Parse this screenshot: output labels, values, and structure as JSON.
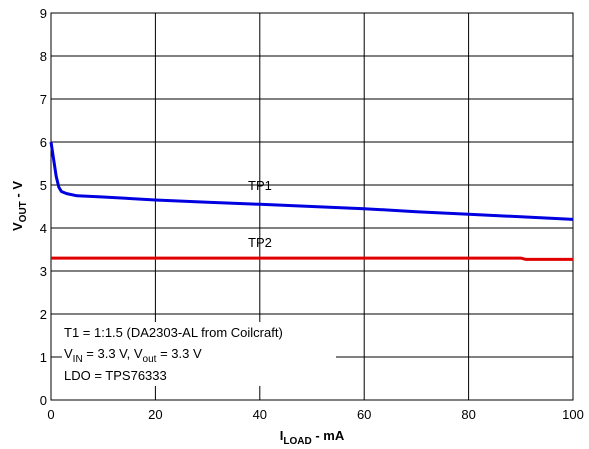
{
  "chart_data": {
    "type": "line",
    "xlabel": {
      "main": "I",
      "sub": "LOAD",
      "suffix": " - mA"
    },
    "ylabel": {
      "main": "V",
      "sub": "OUT",
      "suffix": " - V"
    },
    "xlim": [
      0,
      100
    ],
    "ylim": [
      0,
      9
    ],
    "xticks": [
      0,
      20,
      40,
      60,
      80,
      100
    ],
    "yticks": [
      0,
      1,
      2,
      3,
      4,
      5,
      6,
      7,
      8,
      9
    ],
    "grid": true,
    "series": [
      {
        "name": "TP1",
        "color": "#0000e0",
        "x": [
          0,
          0.5,
          1,
          1.5,
          2,
          3,
          5,
          10,
          20,
          30,
          40,
          50,
          60,
          70,
          80,
          90,
          100
        ],
        "y": [
          6.0,
          5.6,
          5.2,
          4.95,
          4.85,
          4.8,
          4.75,
          4.72,
          4.65,
          4.6,
          4.55,
          4.5,
          4.45,
          4.38,
          4.32,
          4.26,
          4.2
        ]
      },
      {
        "name": "TP2",
        "color": "#e00000",
        "x": [
          0,
          20,
          40,
          60,
          80,
          90,
          91,
          100
        ],
        "y": [
          3.3,
          3.3,
          3.3,
          3.3,
          3.3,
          3.3,
          3.27,
          3.27
        ]
      }
    ],
    "annotations": {
      "tp1_label": "TP1",
      "tp2_label": "TP2",
      "line1": "T1 = 1:1.5 (DA2303-AL from Coilcraft)",
      "line2": {
        "v1": "V",
        "sub1": "IN",
        "mid": " = 3.3 V, V",
        "sub2": "out",
        "end": " = 3.3 V"
      },
      "line3": "LDO = TPS76333"
    }
  }
}
